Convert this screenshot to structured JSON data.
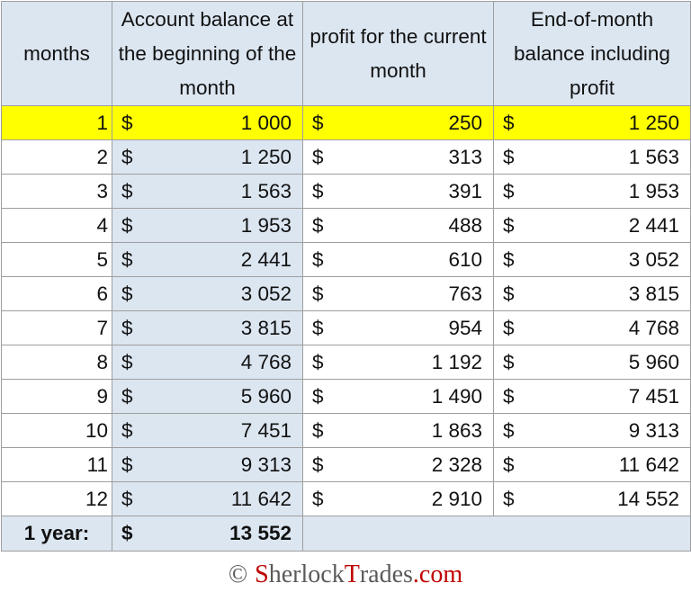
{
  "table": {
    "headers": {
      "months": "months",
      "beginning_balance": "Account balance at the beginning of the month",
      "profit": "profit for the current month",
      "end_balance": "End-of-month balance including profit"
    },
    "currency_symbol": "$",
    "highlight_color": "#ffff00",
    "header_fill_color": "#dce6f1",
    "rows": [
      {
        "month": "1",
        "beginning": "1 000",
        "profit": "250",
        "end": "1 250"
      },
      {
        "month": "2",
        "beginning": "1 250",
        "profit": "313",
        "end": "1 563"
      },
      {
        "month": "3",
        "beginning": "1 563",
        "profit": "391",
        "end": "1 953"
      },
      {
        "month": "4",
        "beginning": "1 953",
        "profit": "488",
        "end": "2 441"
      },
      {
        "month": "5",
        "beginning": "2 441",
        "profit": "610",
        "end": "3 052"
      },
      {
        "month": "6",
        "beginning": "3 052",
        "profit": "763",
        "end": "3 815"
      },
      {
        "month": "7",
        "beginning": "3 815",
        "profit": "954",
        "end": "4 768"
      },
      {
        "month": "8",
        "beginning": "4 768",
        "profit": "1 192",
        "end": "5 960"
      },
      {
        "month": "9",
        "beginning": "5 960",
        "profit": "1 490",
        "end": "7 451"
      },
      {
        "month": "10",
        "beginning": "7 451",
        "profit": "1 863",
        "end": "9 313"
      },
      {
        "month": "11",
        "beginning": "9 313",
        "profit": "2 328",
        "end": "11 642"
      },
      {
        "month": "12",
        "beginning": "11 642",
        "profit": "2 910",
        "end": "14 552"
      }
    ],
    "total": {
      "label": "1 year:",
      "value": "13 552"
    }
  },
  "footer": {
    "copyright": "©",
    "brand_s": "S",
    "brand_herlock": "herlock",
    "brand_t": "T",
    "brand_rades": "rades",
    "brand_domain": ".com"
  }
}
